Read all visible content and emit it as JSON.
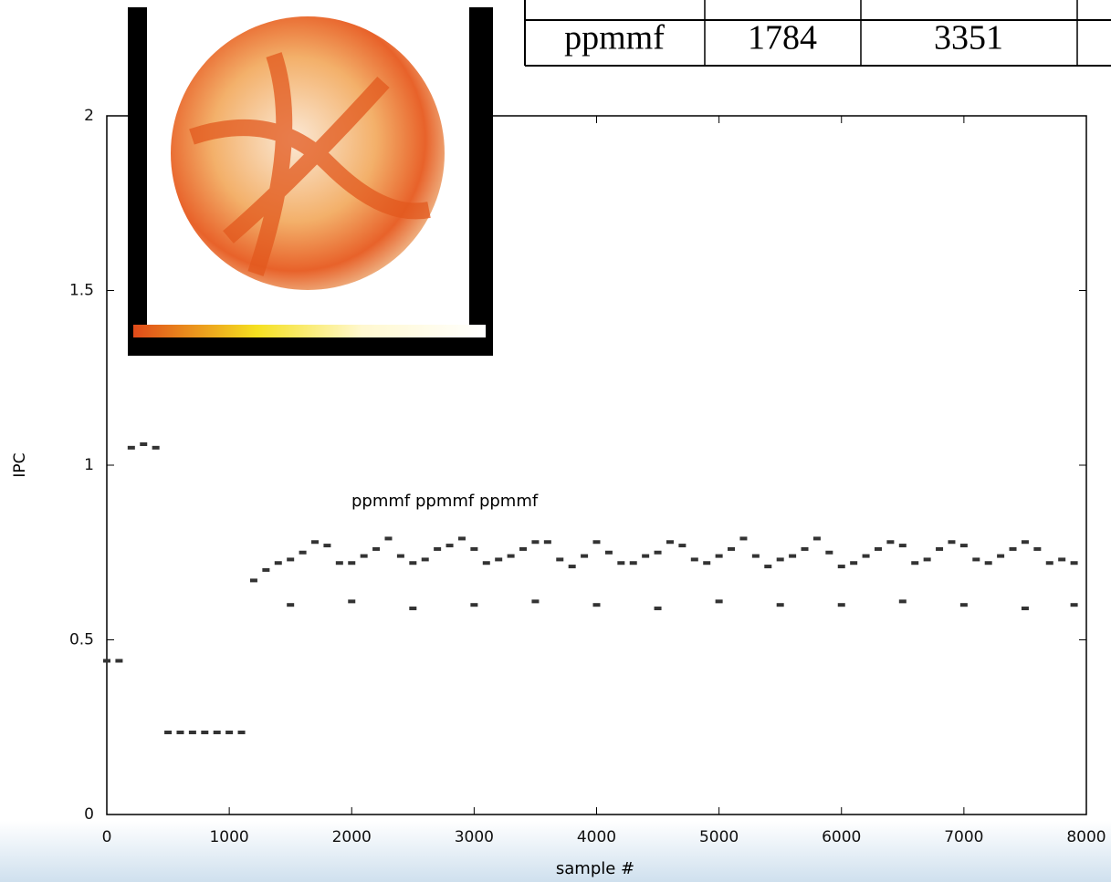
{
  "table": {
    "rows": [
      [
        "ppmmf",
        "1784",
        "3351"
      ]
    ]
  },
  "chart_data": {
    "type": "scatter",
    "x_label": "sample #",
    "y_label": "IPC",
    "annotation": "ppmmf ppmmf ppmmf",
    "xlim": [
      0,
      8000
    ],
    "xticks": [
      0,
      1000,
      2000,
      3000,
      4000,
      5000,
      6000,
      7000,
      8000
    ],
    "ylim": [
      0,
      2
    ],
    "yticks": [
      0,
      0.5,
      1,
      1.5,
      2
    ],
    "grid": false,
    "series": [
      {
        "name": "IPC",
        "color": "#333333",
        "x": [
          0,
          100,
          200,
          300,
          400,
          500,
          600,
          700,
          800,
          900,
          1000,
          1100,
          1200,
          1300,
          1400,
          1500,
          1600,
          1700,
          1800,
          1900,
          2000,
          2100,
          2200,
          2300,
          2400,
          2500,
          2600,
          2700,
          2800,
          2900,
          3000,
          3100,
          3200,
          3300,
          3400,
          3500,
          3600,
          3700,
          3800,
          3900,
          4000,
          4100,
          4200,
          4300,
          4400,
          4500,
          4600,
          4700,
          4800,
          4900,
          5000,
          5100,
          5200,
          5300,
          5400,
          5500,
          5600,
          5700,
          5800,
          5900,
          6000,
          6100,
          6200,
          6300,
          6400,
          6500,
          6600,
          6700,
          6800,
          6900,
          7000,
          7100,
          7200,
          7300,
          7400,
          7500,
          7600,
          7700,
          7800,
          7900,
          1500,
          2000,
          2500,
          3000,
          3500,
          4000,
          4500,
          5000,
          5500,
          6000,
          6500,
          7000,
          7500,
          7900
        ],
        "values": [
          0.44,
          0.44,
          1.05,
          1.06,
          1.05,
          0.235,
          0.235,
          0.235,
          0.235,
          0.235,
          0.235,
          0.235,
          0.67,
          0.7,
          0.72,
          0.73,
          0.75,
          0.78,
          0.77,
          0.72,
          0.72,
          0.74,
          0.76,
          0.79,
          0.74,
          0.72,
          0.73,
          0.76,
          0.77,
          0.79,
          0.76,
          0.72,
          0.73,
          0.74,
          0.76,
          0.78,
          0.78,
          0.73,
          0.71,
          0.74,
          0.78,
          0.75,
          0.72,
          0.72,
          0.74,
          0.75,
          0.78,
          0.77,
          0.73,
          0.72,
          0.74,
          0.76,
          0.79,
          0.74,
          0.71,
          0.73,
          0.74,
          0.76,
          0.79,
          0.75,
          0.71,
          0.72,
          0.74,
          0.76,
          0.78,
          0.77,
          0.72,
          0.73,
          0.76,
          0.78,
          0.77,
          0.73,
          0.72,
          0.74,
          0.76,
          0.78,
          0.76,
          0.72,
          0.73,
          0.72,
          0.6,
          0.61,
          0.59,
          0.6,
          0.61,
          0.6,
          0.59,
          0.61,
          0.6,
          0.6,
          0.61,
          0.6,
          0.59,
          0.6
        ]
      }
    ]
  }
}
